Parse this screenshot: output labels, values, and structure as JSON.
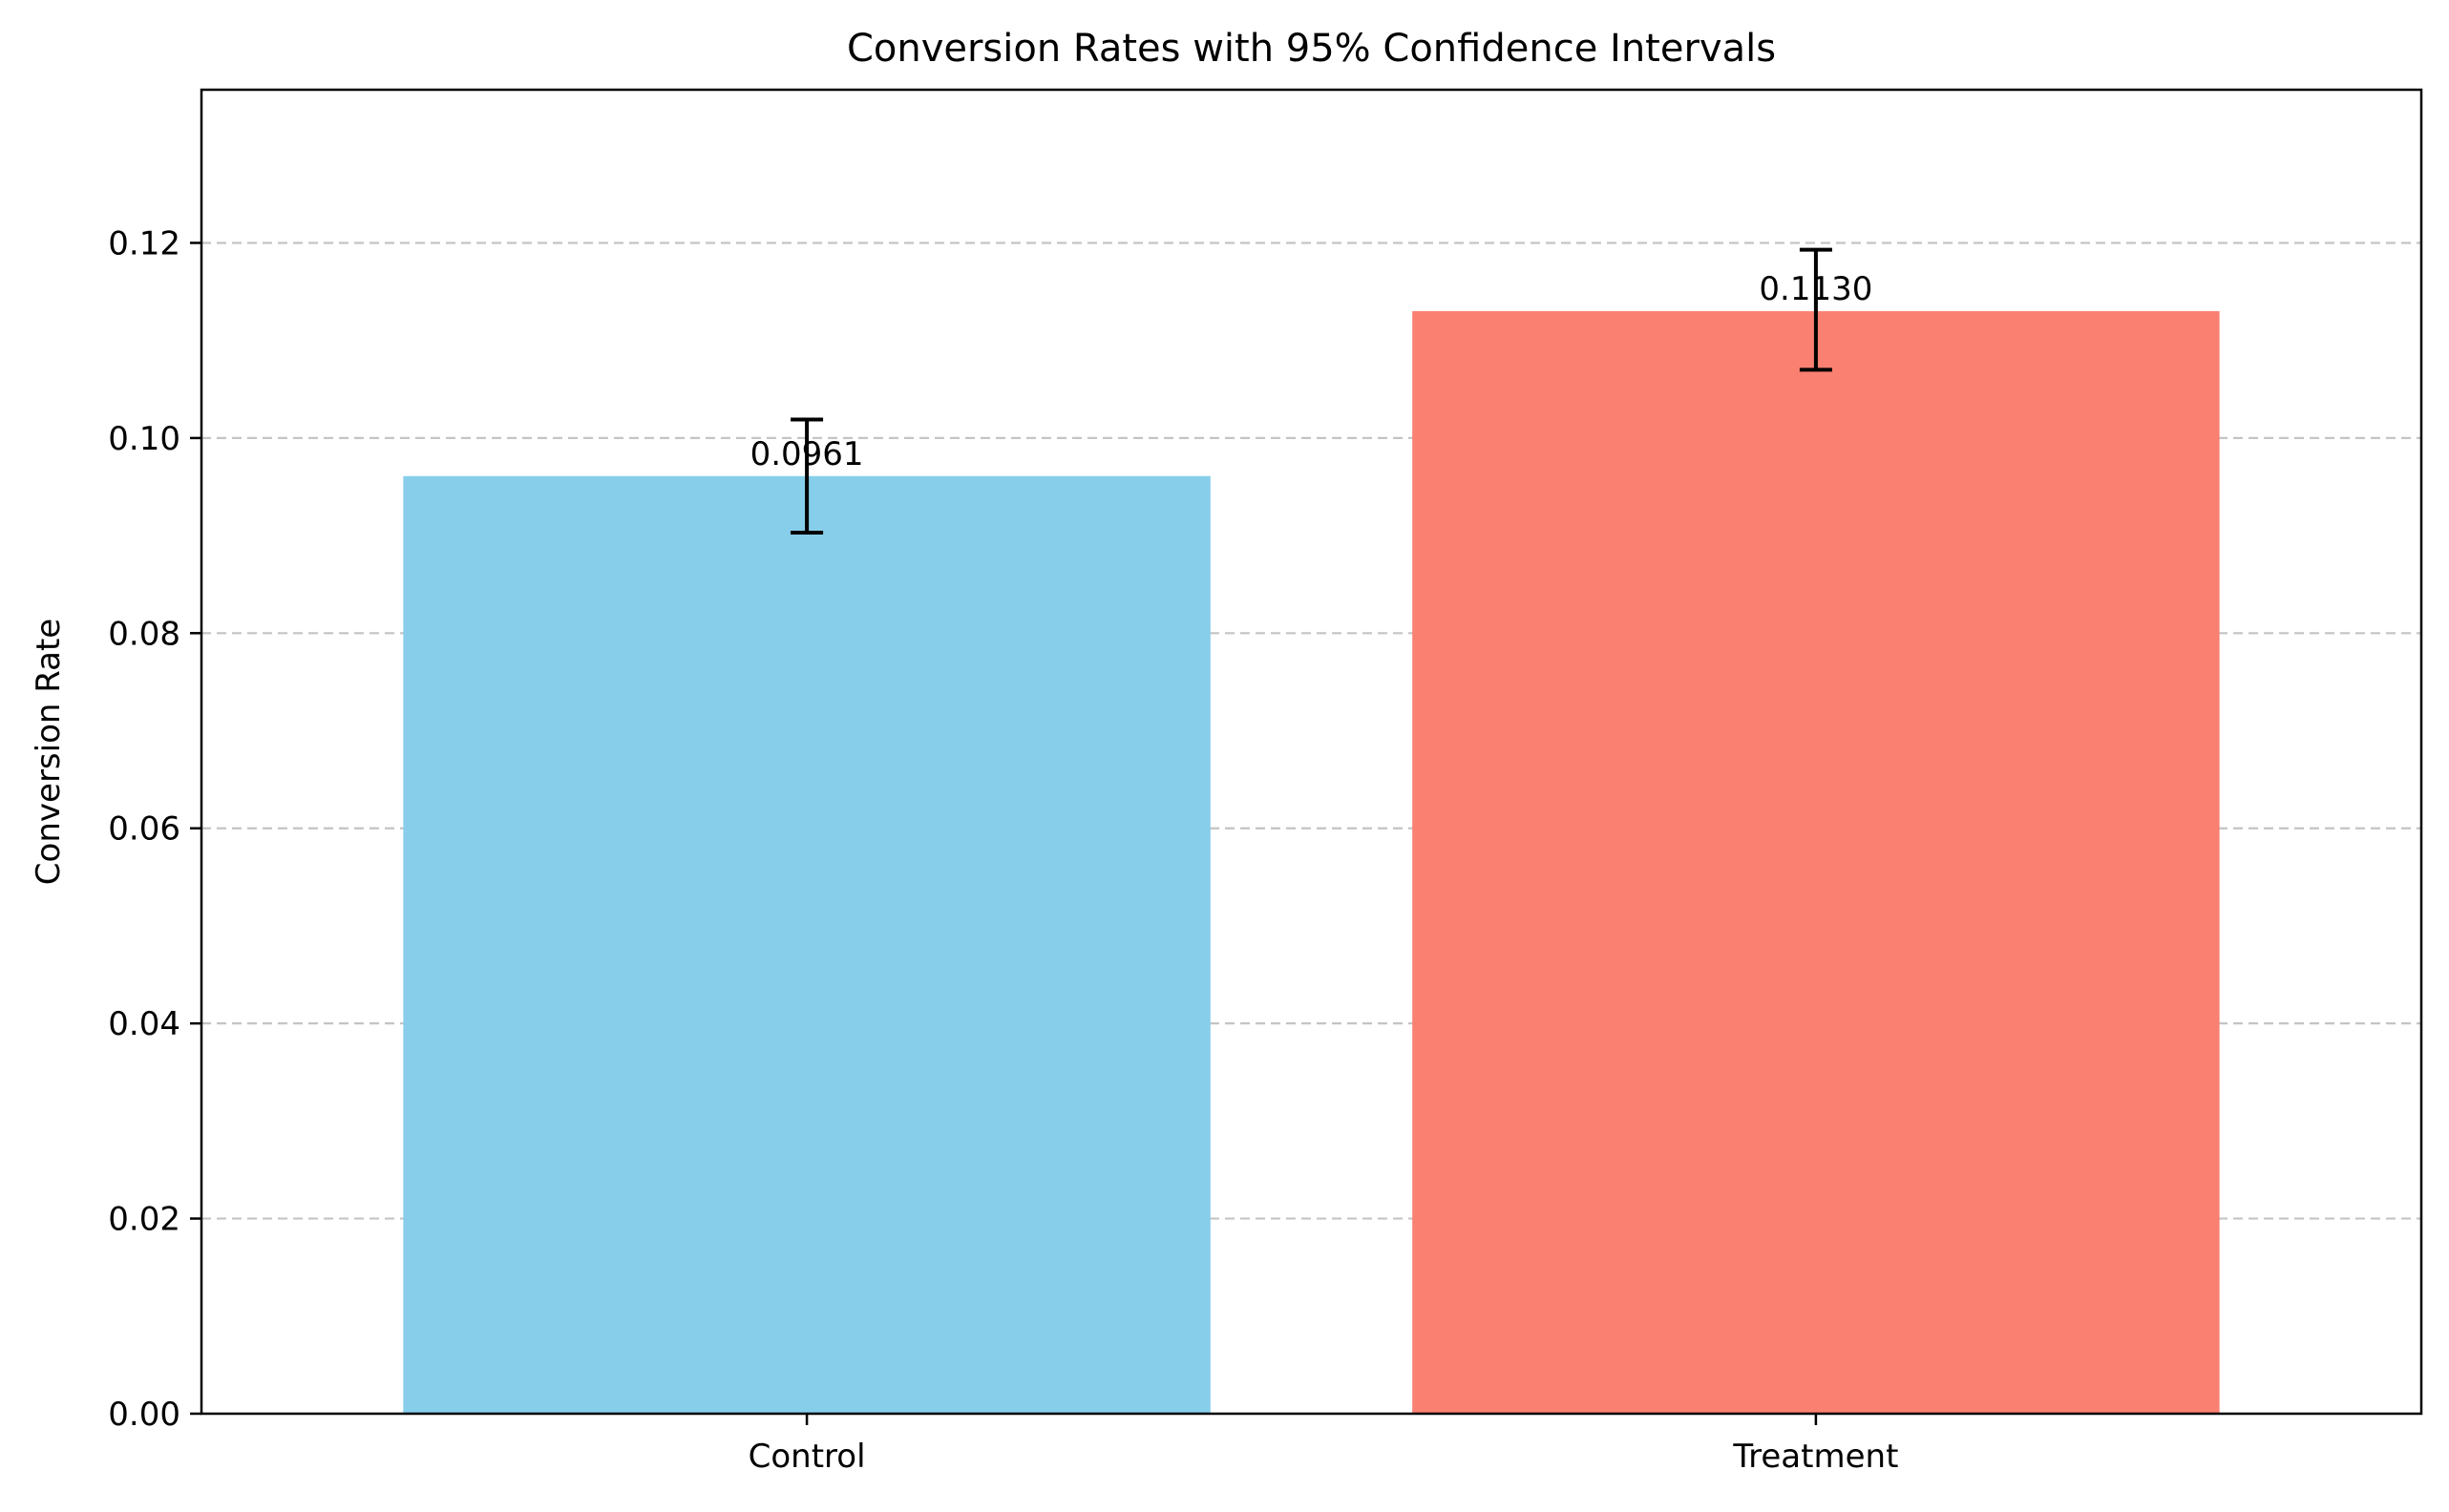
{
  "chart_data": {
    "type": "bar",
    "title": "Conversion Rates with 95% Confidence Intervals",
    "xlabel": "",
    "ylabel": "Conversion Rate",
    "categories": [
      "Control",
      "Treatment"
    ],
    "values": [
      0.0961,
      0.113
    ],
    "ci_lower": [
      0.0903,
      0.107
    ],
    "ci_upper": [
      0.1019,
      0.1193
    ],
    "data_labels": [
      "0.0961",
      "0.1130"
    ],
    "colors": [
      "#87CEEB",
      "#FA8072"
    ],
    "ylim": [
      0,
      0.1357
    ],
    "yticks": [
      0.0,
      0.02,
      0.04,
      0.06,
      0.08,
      0.1,
      0.12
    ],
    "ytick_labels": [
      "0.00",
      "0.02",
      "0.04",
      "0.06",
      "0.08",
      "0.10",
      "0.12"
    ],
    "grid": "y-dashed",
    "legend": "none"
  }
}
